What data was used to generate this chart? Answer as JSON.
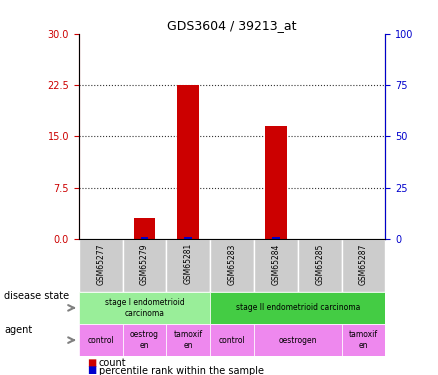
{
  "title": "GDS3604 / 39213_at",
  "samples": [
    "GSM65277",
    "GSM65279",
    "GSM65281",
    "GSM65283",
    "GSM65284",
    "GSM65285",
    "GSM65287"
  ],
  "count_values": [
    0,
    3,
    22.5,
    0,
    16.5,
    0,
    0
  ],
  "percentile_values": [
    0,
    1,
    1,
    0,
    1,
    0,
    0
  ],
  "ylim_left": [
    0,
    30
  ],
  "ylim_right": [
    0,
    100
  ],
  "yticks_left": [
    0,
    7.5,
    15,
    22.5,
    30
  ],
  "yticks_right": [
    0,
    25,
    50,
    75,
    100
  ],
  "count_color": "#cc0000",
  "percentile_color": "#0000cc",
  "disease_state_groups": [
    {
      "label": "stage I endometrioid\ncarcinoma",
      "start": 0,
      "end": 3,
      "color": "#99ee99"
    },
    {
      "label": "stage II endometrioid carcinoma",
      "start": 3,
      "end": 7,
      "color": "#44cc44"
    }
  ],
  "agent_groups": [
    {
      "label": "control",
      "start": 0,
      "end": 1,
      "color": "#ee88ee"
    },
    {
      "label": "oestrog\nen",
      "start": 1,
      "end": 2,
      "color": "#ee88ee"
    },
    {
      "label": "tamoxif\nen",
      "start": 2,
      "end": 3,
      "color": "#ee88ee"
    },
    {
      "label": "control",
      "start": 3,
      "end": 4,
      "color": "#ee88ee"
    },
    {
      "label": "oestrogen",
      "start": 4,
      "end": 6,
      "color": "#ee88ee"
    },
    {
      "label": "tamoxif\nen",
      "start": 6,
      "end": 7,
      "color": "#ee88ee"
    }
  ],
  "sample_bg_color": "#cccccc",
  "left_axis_color": "#cc0000",
  "right_axis_color": "#0000cc",
  "grid_color": "#333333"
}
